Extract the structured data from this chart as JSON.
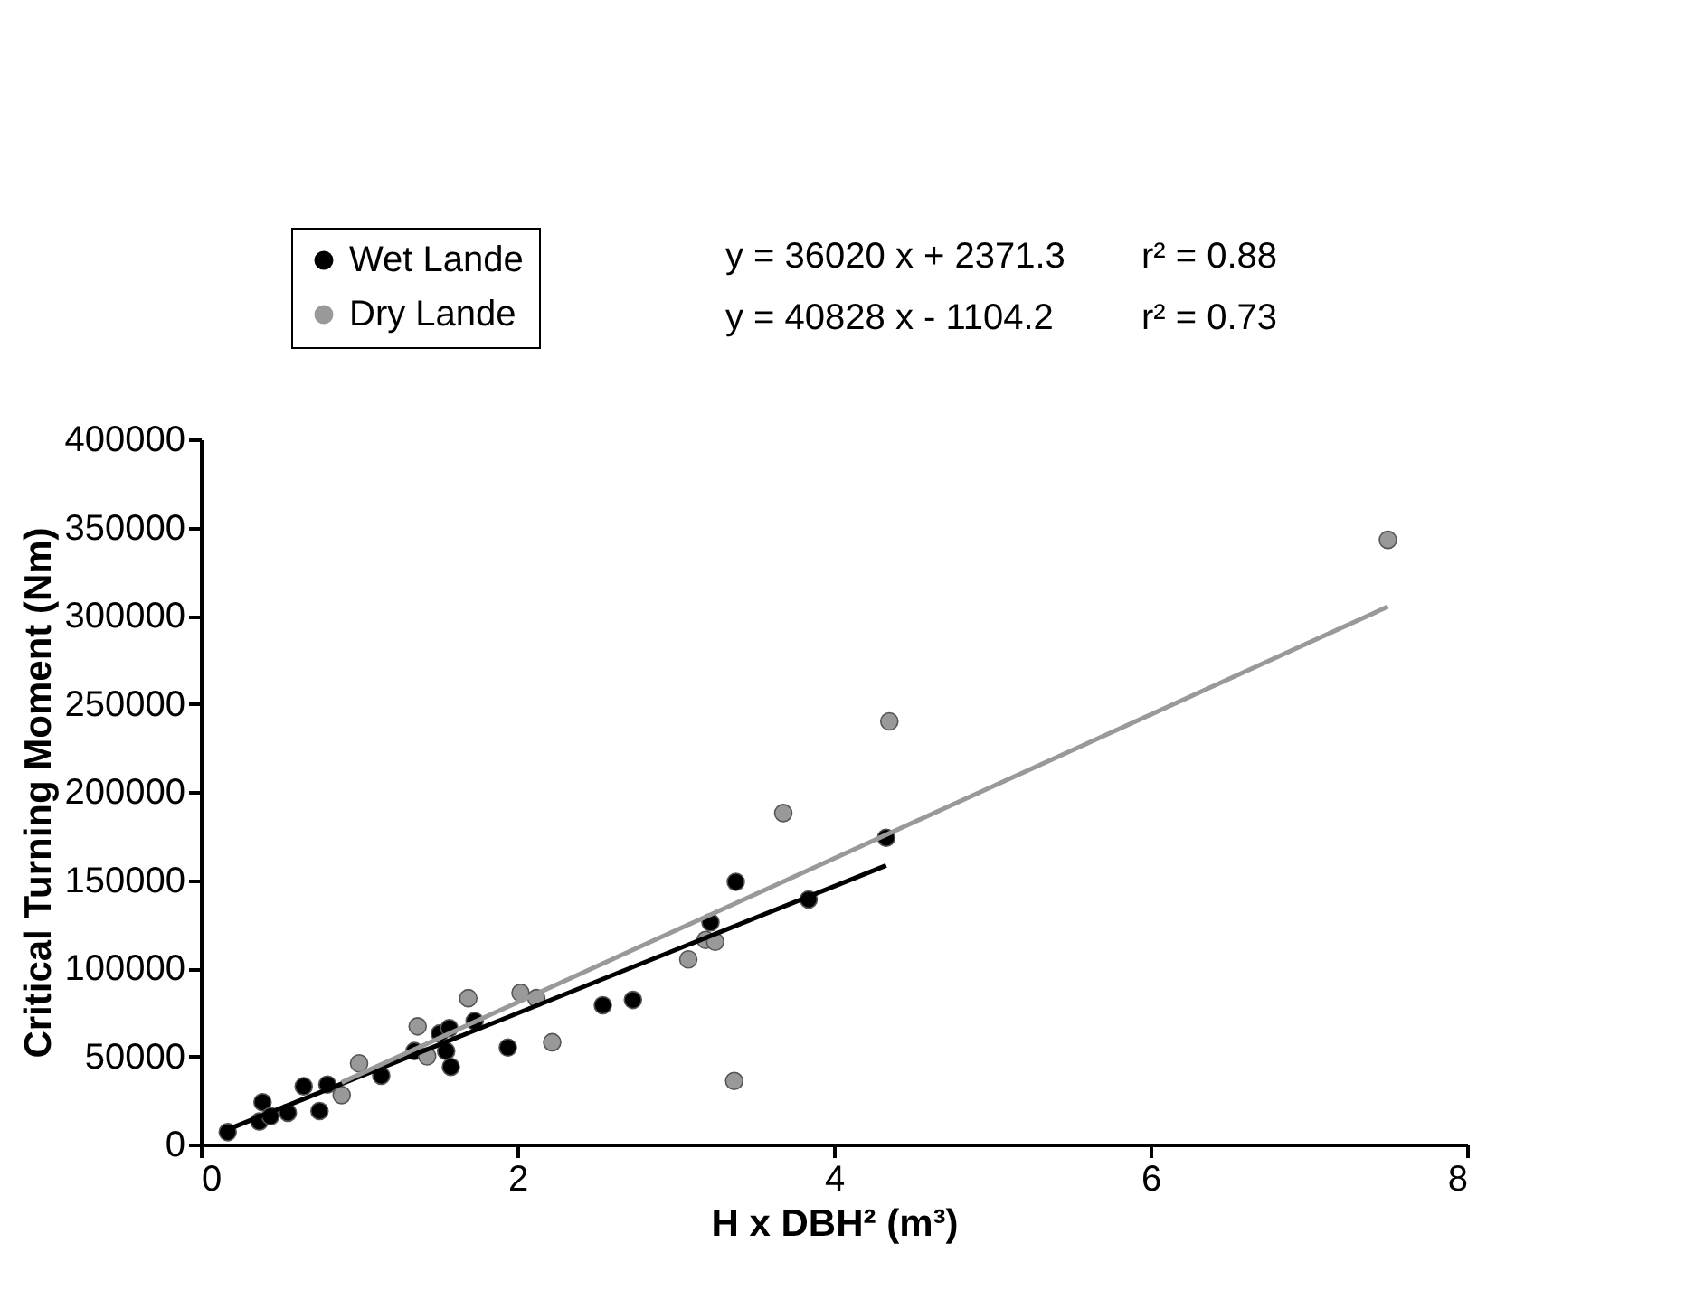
{
  "chart_data": {
    "type": "scatter",
    "xlabel": "H x DBH² (m³)",
    "ylabel": "Critical Turning Moment (Nm)",
    "xlim": [
      0,
      8
    ],
    "xticks": [
      0,
      2,
      4,
      6,
      8
    ],
    "ylim": [
      0,
      400000
    ],
    "yticks": [
      0,
      50000,
      100000,
      150000,
      200000,
      250000,
      300000,
      350000,
      400000
    ],
    "grid": false,
    "legend": "top",
    "series": [
      {
        "name": "Wet Lande",
        "type": "scatter",
        "marker": "circle",
        "color": "#000000",
        "x": [
          0.17,
          0.37,
          0.39,
          0.44,
          0.55,
          0.65,
          0.75,
          0.8,
          1.14,
          1.35,
          1.51,
          1.55,
          1.57,
          1.58,
          1.73,
          1.94,
          2.54,
          2.73,
          3.22,
          3.38,
          3.84,
          4.33
        ],
        "values": [
          7000,
          13000,
          24000,
          16000,
          18000,
          33000,
          19000,
          34000,
          39000,
          53000,
          63000,
          53000,
          66000,
          44000,
          70000,
          55000,
          79000,
          82000,
          126000,
          149000,
          139000,
          174000
        ]
      },
      {
        "name": "Dry Lande",
        "type": "scatter",
        "marker": "circle",
        "color": "#999999",
        "x": [
          0.89,
          1.0,
          1.37,
          1.43,
          1.69,
          2.02,
          2.12,
          2.22,
          3.08,
          3.19,
          3.25,
          3.37,
          3.68,
          4.35,
          7.5
        ],
        "values": [
          28000,
          46000,
          67000,
          50000,
          83000,
          86000,
          83000,
          58000,
          105000,
          116000,
          115000,
          36000,
          188000,
          240000,
          343000
        ]
      },
      {
        "type": "line",
        "color": "#000000",
        "line_style": "solid",
        "x": [
          0.17,
          4.33
        ],
        "values": [
          8500,
          158300
        ]
      },
      {
        "type": "line",
        "color": "#999999",
        "line_style": "solid",
        "x": [
          0.89,
          7.5
        ],
        "values": [
          35200,
          305100
        ]
      }
    ],
    "annotations": [
      "y = 36020 x + 2371.3",
      "r² = 0.88",
      "y = 40828 x - 1104.2",
      "r² = 0.73"
    ]
  }
}
